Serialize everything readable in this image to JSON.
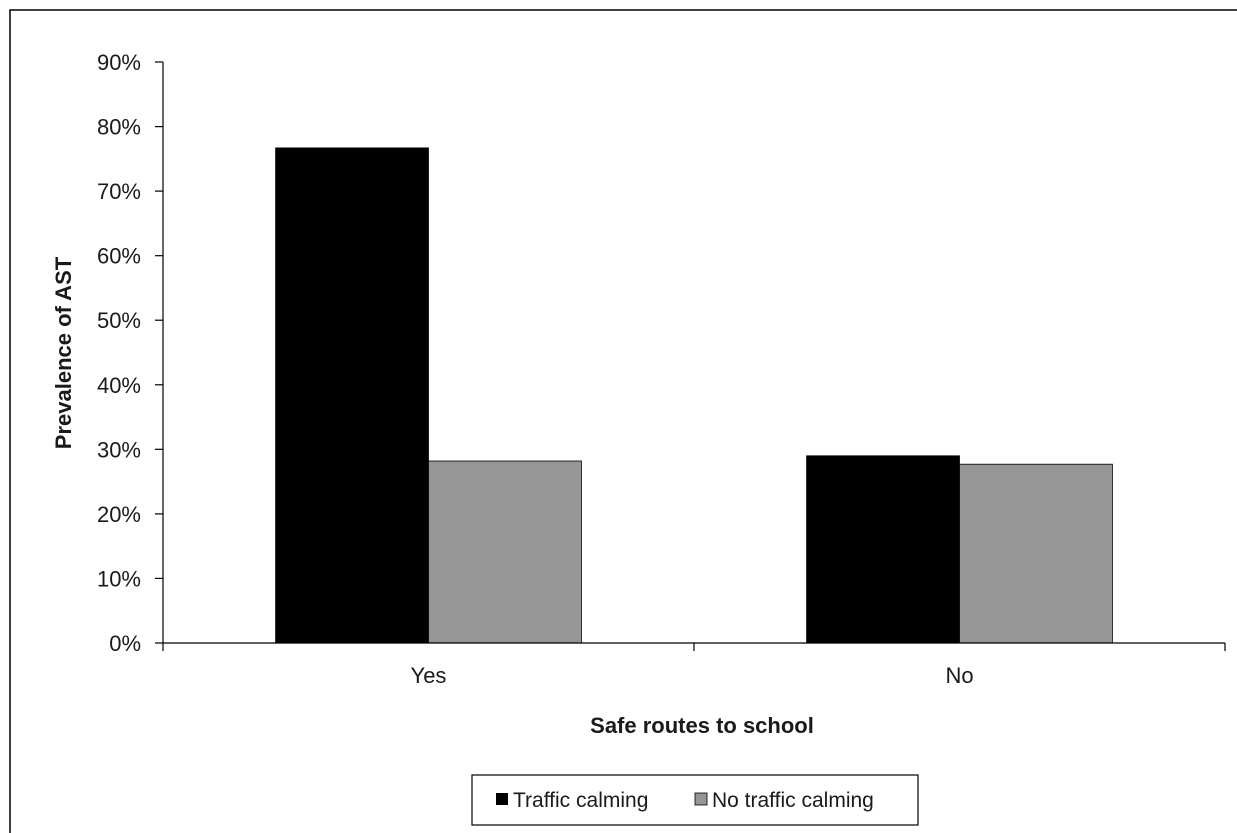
{
  "chart_data": {
    "type": "bar",
    "title": "",
    "xlabel": "Safe routes to school",
    "ylabel": "Prevalence of AST",
    "categories": [
      "Yes",
      "No"
    ],
    "series": [
      {
        "name": "Traffic calming",
        "values": [
          76.7,
          29.0
        ],
        "color": "#000000"
      },
      {
        "name": "No traffic calming",
        "values": [
          28.2,
          27.7
        ],
        "color": "#969696"
      }
    ],
    "ylim": [
      0,
      90
    ],
    "yticks": [
      0,
      10,
      20,
      30,
      40,
      50,
      60,
      70,
      80,
      90
    ],
    "ytick_labels": [
      "0%",
      "10%",
      "20%",
      "30%",
      "40%",
      "50%",
      "60%",
      "70%",
      "80%",
      "90%"
    ],
    "grid": false,
    "legend": "bottom"
  }
}
